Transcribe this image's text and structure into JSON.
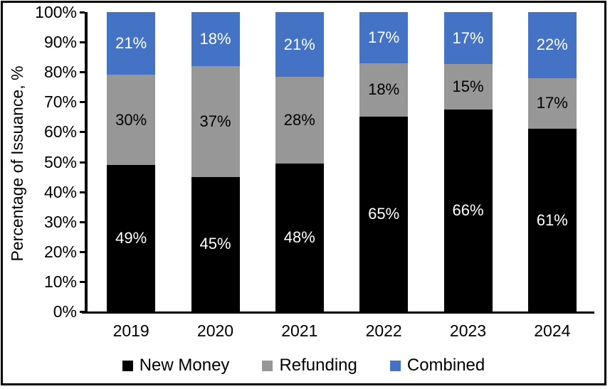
{
  "chart_data": {
    "type": "bar",
    "variant": "stacked-100-percent",
    "title": "",
    "ylabel": "Percentage of Issuance, %",
    "xlabel": "",
    "categories": [
      "2019",
      "2020",
      "2021",
      "2022",
      "2023",
      "2024"
    ],
    "series": [
      {
        "name": "New Money",
        "color": "#000000",
        "label_color": "#ffffff",
        "values": [
          49,
          45,
          48,
          65,
          66,
          61
        ]
      },
      {
        "name": "Refunding",
        "color": "#979797",
        "label_color": "#000000",
        "values": [
          30,
          37,
          28,
          18,
          15,
          17
        ]
      },
      {
        "name": "Combined",
        "color": "#4472C4",
        "label_color": "#ffffff",
        "values": [
          21,
          18,
          21,
          17,
          17,
          22
        ]
      }
    ],
    "data_label_suffix": "%",
    "y_ticks": [
      "0%",
      "10%",
      "20%",
      "30%",
      "40%",
      "50%",
      "60%",
      "70%",
      "80%",
      "90%",
      "100%"
    ],
    "ylim": [
      0,
      100
    ],
    "grid": false,
    "legend_position": "bottom",
    "axis_color": "#000000",
    "background_color": "#ffffff",
    "frame_color": "#000000"
  }
}
